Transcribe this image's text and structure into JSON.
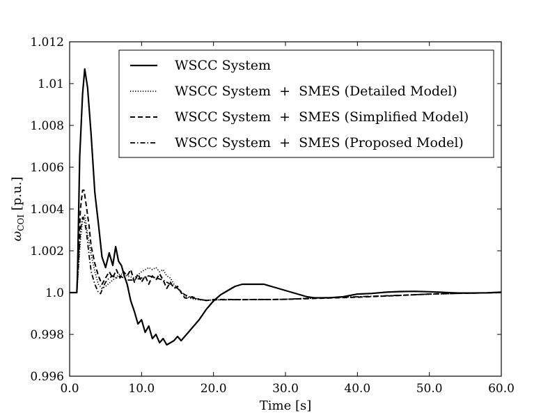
{
  "chart_data": {
    "type": "line",
    "title": "",
    "xlabel": "Time [s]",
    "ylabel": "ω",
    "ylabel_sub": "COI",
    "ylabel_unit": " [p.u.]",
    "xlim": [
      0,
      60
    ],
    "ylim": [
      0.996,
      1.012
    ],
    "xticks": [
      0,
      10,
      20,
      30,
      40,
      50,
      60
    ],
    "xtick_labels": [
      "0.0",
      "10.0",
      "20.0",
      "30.0",
      "40.0",
      "50.0",
      "60.0"
    ],
    "yticks": [
      0.996,
      0.998,
      1.0,
      1.002,
      1.004,
      1.006,
      1.008,
      1.01,
      1.012
    ],
    "ytick_labels": [
      "0.996",
      "0.998",
      "1.0",
      "1.002",
      "1.004",
      "1.006",
      "1.008",
      "1.01",
      "1.012"
    ],
    "grid": false,
    "legend_position": "top-right",
    "series": [
      {
        "name": "WSCC System",
        "style": "solid",
        "color": "#000000",
        "x": [
          0,
          1.0,
          1.1,
          1.4,
          1.8,
          2.1,
          2.5,
          3.0,
          3.5,
          4.0,
          4.5,
          5.0,
          5.5,
          6.0,
          6.4,
          6.8,
          7.2,
          7.6,
          8.0,
          8.5,
          9.0,
          9.5,
          10.0,
          10.5,
          11.0,
          11.5,
          12.0,
          12.5,
          13.0,
          13.5,
          14.0,
          14.5,
          15.0,
          15.5,
          16.0,
          17.0,
          18.0,
          19.0,
          20.0,
          21.0,
          22.0,
          23.0,
          24.0,
          25.0,
          26.0,
          27.0,
          28.0,
          29.0,
          30.0,
          31.0,
          32.0,
          33.0,
          34.0,
          35.0,
          36.0,
          38.0,
          40.0,
          42.0,
          44.0,
          46.0,
          48.0,
          50.0,
          52.0,
          54.0,
          56.0,
          58.0,
          60.0
        ],
        "y": [
          1.0,
          1.0,
          1.001,
          1.0065,
          1.0095,
          1.0107,
          1.0098,
          1.0075,
          1.0048,
          1.0033,
          1.0017,
          1.0012,
          1.0019,
          1.0013,
          1.0022,
          1.0015,
          1.0013,
          1.0008,
          1.0004,
          0.9996,
          0.9991,
          0.9985,
          0.9987,
          0.9981,
          0.9984,
          0.9978,
          0.998,
          0.9976,
          0.9978,
          0.9975,
          0.9976,
          0.9977,
          0.9979,
          0.9977,
          0.9979,
          0.9983,
          0.9987,
          0.9992,
          0.9996,
          0.9999,
          1.0001,
          1.0003,
          1.0004,
          1.0004,
          1.0004,
          1.0004,
          1.0003,
          1.0002,
          1.0001,
          1.0,
          0.9999,
          0.9998,
          0.99975,
          0.99975,
          0.99975,
          0.9998,
          0.99993,
          0.99996,
          1.00002,
          1.00005,
          1.00006,
          1.00004,
          1.00001,
          0.99998,
          0.99998,
          0.99999,
          1.00002
        ]
      },
      {
        "name": "WSCC System  +  SMES (Detailed Model)",
        "style": "dotted",
        "color": "#000000",
        "x": [
          0,
          1.0,
          1.2,
          1.5,
          1.8,
          2.1,
          2.5,
          3.0,
          3.5,
          4.0,
          4.5,
          5.0,
          6.0,
          7.0,
          8.0,
          9.0,
          10.0,
          10.5,
          11.0,
          11.5,
          12.0,
          12.5,
          13.0,
          13.5,
          14.0,
          14.5,
          15.0,
          15.5,
          16.0,
          17.0,
          18.0,
          19.0,
          20.0,
          22.0,
          24.0,
          26.0,
          28.0,
          30.0,
          35.0,
          40.0,
          45.0,
          50.0,
          55.0,
          60.0
        ],
        "y": [
          1.0,
          1.0,
          1.001,
          1.0025,
          1.0035,
          1.0037,
          1.0028,
          1.0018,
          1.001,
          1.0004,
          1.0002,
          1.0003,
          1.0006,
          1.0009,
          1.0008,
          1.0007,
          1.001,
          1.0011,
          1.0012,
          1.0011,
          1.0012,
          1.001,
          1.0011,
          1.0008,
          1.0007,
          1.0004,
          1.0002,
          1.0,
          0.99985,
          0.9997,
          0.99965,
          0.99963,
          0.99965,
          0.99966,
          0.99967,
          0.99966,
          0.99967,
          0.99968,
          0.99975,
          0.9998,
          0.99985,
          0.99992,
          0.99997,
          1.0
        ]
      },
      {
        "name": "WSCC System  +  SMES (Simplified Model)",
        "style": "dashed",
        "color": "#000000",
        "x": [
          0,
          1.0,
          1.2,
          1.5,
          1.8,
          2.0,
          2.3,
          2.7,
          3.0,
          3.5,
          4.0,
          4.5,
          5.0,
          5.5,
          6.0,
          6.5,
          7.0,
          7.5,
          8.0,
          8.5,
          9.0,
          9.5,
          10.0,
          10.5,
          11.0,
          11.5,
          12.0,
          12.5,
          13.0,
          13.5,
          14.0,
          14.5,
          15.0,
          15.5,
          16.0,
          16.5,
          17.0,
          18.0,
          19.0,
          20.0,
          22.0,
          24.0,
          26.0,
          28.0,
          30.0,
          35.0,
          40.0,
          45.0,
          50.0,
          55.0,
          60.0
        ],
        "y": [
          1.0,
          1.0,
          1.0015,
          1.004,
          1.0049,
          1.0049,
          1.0042,
          1.0032,
          1.0022,
          1.0014,
          1.0008,
          1.0004,
          1.0007,
          1.001,
          1.0007,
          1.0011,
          1.0007,
          1.001,
          1.0008,
          1.0011,
          1.0005,
          1.0009,
          1.0005,
          1.0008,
          1.0004,
          1.0008,
          1.0006,
          1.0009,
          1.0006,
          1.0002,
          1.0005,
          1.0002,
          1.0003,
          1.0,
          0.99975,
          0.99972,
          0.9998,
          0.99968,
          0.99962,
          0.99967,
          0.99967,
          0.99966,
          0.99967,
          0.99967,
          0.99968,
          0.99973,
          0.99978,
          0.99985,
          0.99993,
          0.99997,
          1.0
        ]
      },
      {
        "name": "WSCC System  +  SMES (Proposed Model)",
        "style": "dashdot",
        "color": "#000000",
        "x": [
          0,
          1.0,
          1.2,
          1.5,
          1.8,
          2.0,
          2.3,
          2.7,
          3.0,
          3.5,
          4.0,
          4.3,
          4.7,
          5.0,
          5.5,
          6.0,
          6.5,
          7.0,
          7.5,
          8.0,
          9.0,
          10.0,
          11.0,
          12.0,
          13.0,
          14.0,
          15.0,
          16.0,
          17.0,
          18.0,
          19.0,
          20.0,
          22.0,
          24.0,
          26.0,
          28.0,
          30.0,
          35.0,
          40.0,
          45.0,
          50.0,
          55.0,
          60.0
        ],
        "y": [
          1.0,
          1.0,
          1.0012,
          1.003,
          1.0036,
          1.0035,
          1.003,
          1.0018,
          1.001,
          1.0004,
          1.0,
          0.99995,
          1.0003,
          1.0005,
          1.0007,
          1.0008,
          1.0007,
          1.0008,
          1.0007,
          1.0006,
          1.0006,
          1.0007,
          1.0008,
          1.0007,
          1.0006,
          1.0004,
          1.0002,
          0.9999,
          0.99975,
          0.99968,
          0.99963,
          0.99965,
          0.99966,
          0.99966,
          0.99967,
          0.99967,
          0.99968,
          0.99975,
          0.9998,
          0.99986,
          0.99993,
          0.99997,
          1.0
        ]
      }
    ]
  }
}
